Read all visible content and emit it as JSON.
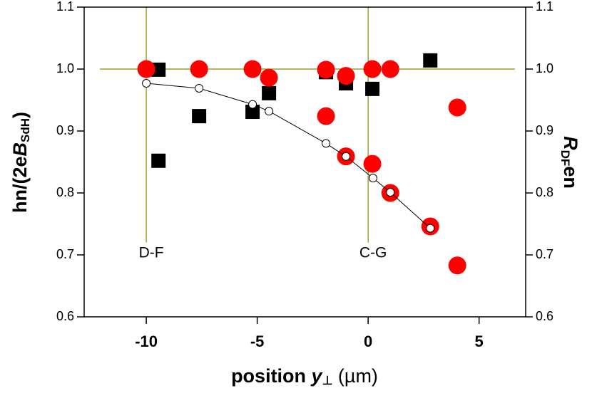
{
  "chart_data": {
    "type": "scatter",
    "xlabel": [
      "position ",
      "y",
      "⊥",
      " (µm)"
    ],
    "ylabel": [
      "hn/(2e",
      "B",
      "SdH",
      ")"
    ],
    "y2label": [
      "R",
      "DF",
      "en"
    ],
    "xlim": [
      -12.8,
      7.1
    ],
    "xticks": [
      -10,
      -5,
      0,
      5
    ],
    "ylim": [
      0.6,
      1.1
    ],
    "yticks": [
      0.6,
      0.7,
      0.8,
      0.9,
      {
        "value": 1.0,
        "label": "1.0"
      },
      1.1
    ],
    "y2lim": [
      0.6,
      1.1
    ],
    "y2ticks": [
      0.6,
      0.7,
      0.8,
      0.9,
      {
        "value": 1.0,
        "label": "1.0"
      },
      1.1
    ],
    "reference_lines": {
      "color": "#8a8a00",
      "x": [
        -10,
        0
      ],
      "y": [
        1.0
      ]
    },
    "annotations": [
      {
        "text": "D-F",
        "x": -10,
        "y": 0.7
      },
      {
        "text": "C-G",
        "x": 0,
        "y": 0.7
      }
    ],
    "series": [
      {
        "marker": "square",
        "color": "#000000",
        "x": [
          -9.45,
          -9.45,
          -7.62,
          -5.21,
          -4.47,
          -1.9,
          -1.0,
          0.19,
          2.8
        ],
        "y": [
          0.852,
          0.999,
          0.924,
          0.931,
          0.961,
          0.995,
          0.977,
          0.968,
          1.014
        ]
      },
      {
        "marker": "circle",
        "color": "#ff0000",
        "x": [
          -10.0,
          -7.62,
          -5.21,
          -4.47,
          -1.9,
          -1.0,
          0.19,
          1.0,
          4.02,
          -1.9,
          -1.0,
          0.19,
          1.0,
          2.8,
          4.02
        ],
        "y": [
          1.0,
          1.0,
          1.0,
          0.986,
          0.999,
          0.989,
          1.0,
          1.0,
          0.938,
          0.924,
          0.859,
          0.847,
          0.8,
          0.746,
          0.683
        ]
      },
      {
        "marker": "open-circle",
        "color": "#000000",
        "line": true,
        "x": [
          -10.0,
          -7.62,
          -5.21,
          -4.47,
          -1.9,
          -1.0,
          0.22,
          1.0,
          2.8
        ],
        "y": [
          0.977,
          0.969,
          0.943,
          0.932,
          0.88,
          0.859,
          0.824,
          0.801,
          0.743
        ]
      }
    ]
  }
}
